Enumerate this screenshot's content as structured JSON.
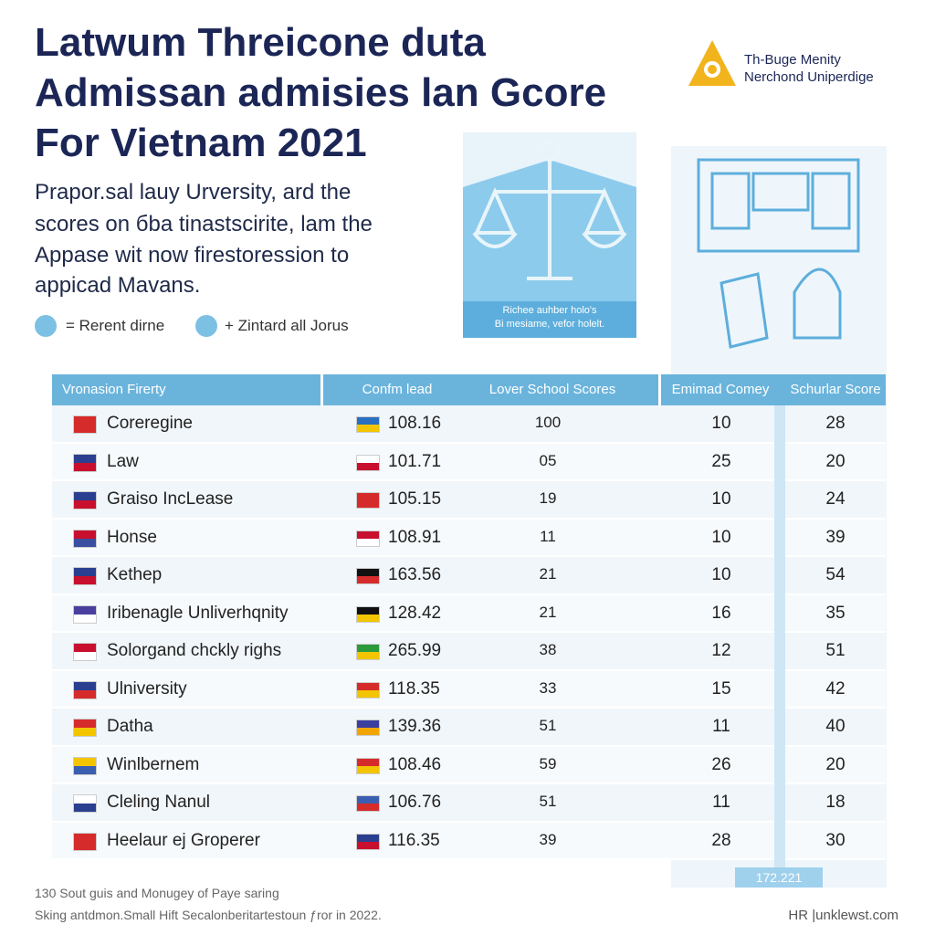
{
  "header": {
    "title": [
      "Latwum Threicone duta",
      "Admissan admisies lan Gcore",
      "For Vietnam 2021"
    ],
    "subtitle": [
      "Prapor.sal lauy Urversity, ard the",
      "scores on бba tinastscirite, lam the",
      "Appase wit now firestoression to",
      "appicad Mavans."
    ],
    "legend": [
      "= Rerent dirne",
      "+ Zintard all Joruѕ"
    ],
    "logo": [
      "Th-Buge Menity",
      "Nerchond Uniperdige"
    ],
    "image_caption": [
      "Richee auhber holo's",
      "Bi mesiame, vefor holelt."
    ]
  },
  "table": {
    "columns": [
      "Vronasion Firerty",
      "Confm lead",
      "Lover School Scores",
      "Emimad Comey",
      "Schurlar Score"
    ],
    "rows": [
      [
        "Coreregine",
        "108.16",
        "100",
        "10",
        "28"
      ],
      [
        "Law",
        "101.71",
        "05",
        "25",
        "20"
      ],
      [
        "Graiso IncLease",
        "105.15",
        "19",
        "10",
        "24"
      ],
      [
        "Honse",
        "108.91",
        "11",
        "10",
        "39"
      ],
      [
        "Kethep",
        "163.56",
        "21",
        "10",
        "54"
      ],
      [
        "Iribenagle Unliverhqnity",
        "128.42",
        "21",
        "16",
        "35"
      ],
      [
        "Solorgand chckly righs",
        "265.99",
        "38",
        "12",
        "51"
      ],
      [
        "Ulniversity",
        "118.35",
        "33",
        "15",
        "42"
      ],
      [
        "Datha",
        "139.36",
        "51",
        "11",
        "40"
      ],
      [
        "Winlbernem",
        "108.46",
        "59",
        "26",
        "20"
      ],
      [
        "Cleling Nanul",
        "106.76",
        "51",
        "11",
        "18"
      ],
      [
        "Heelaur ej Groperer",
        "116.35",
        "39",
        "28",
        "30"
      ]
    ],
    "tag": "172.221"
  },
  "footer": {
    "notes": [
      "130 Sout guis and Monugey of Paye saring",
      "Sking antdmon.Small Hift Secalonberitartestoun ƒror in 2022."
    ],
    "brand": "HR |unklewst.com"
  }
}
